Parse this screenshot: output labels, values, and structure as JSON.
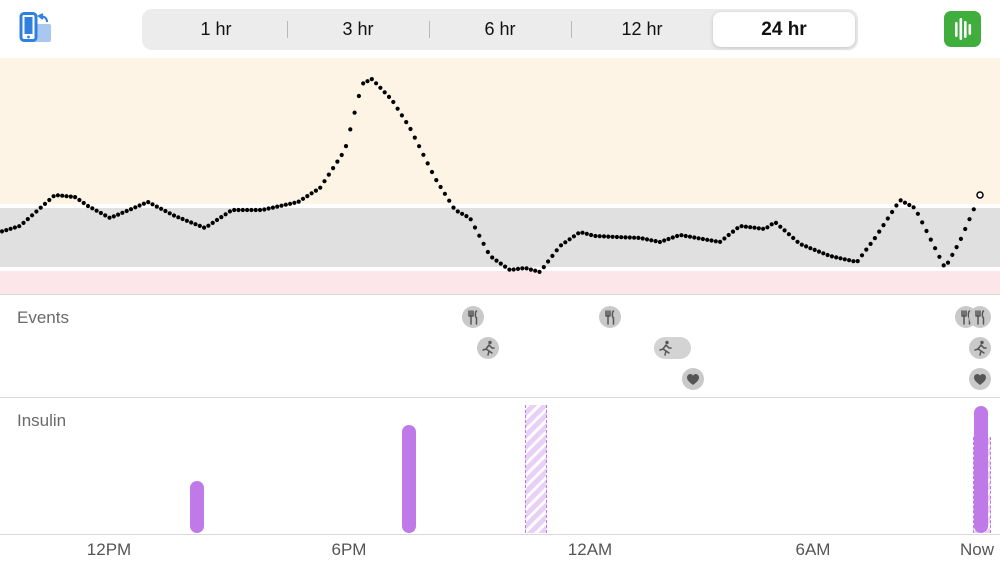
{
  "toolbar": {
    "rotate_icon": "device-rotate-icon",
    "chart_icon": "bar-chart-icon",
    "ranges": [
      {
        "label": "1 hr",
        "selected": false
      },
      {
        "label": "3 hr",
        "selected": false
      },
      {
        "label": "6 hr",
        "selected": false
      },
      {
        "label": "12 hr",
        "selected": false
      },
      {
        "label": "24 hr",
        "selected": true
      }
    ]
  },
  "colors": {
    "high_zone": "#fdf4e6",
    "target_zone": "#e0e0e0",
    "low_zone": "#fde6e9",
    "insulin": "#c07ae8",
    "chart_button": "#3fae3c",
    "rotate_icon": "#2f7fe0"
  },
  "sections": {
    "events_label": "Events",
    "insulin_label": "Insulin"
  },
  "events": [
    {
      "type": "meal",
      "icon": "fork-knife-icon",
      "row": 1,
      "hours_ago": 12.4
    },
    {
      "type": "exercise",
      "icon": "running-icon",
      "row": 2,
      "hours_ago": 12.2
    },
    {
      "type": "meal",
      "icon": "fork-knife-icon",
      "row": 1,
      "hours_ago": 9.1
    },
    {
      "type": "exercise",
      "icon": "running-icon",
      "row": 2,
      "hours_ago": 7.7,
      "duration_hours": 0.8
    },
    {
      "type": "health",
      "icon": "heart-icon",
      "row": 3,
      "hours_ago": 7.4
    },
    {
      "type": "meal",
      "icon": "fork-knife-icon",
      "row": 1,
      "hours_ago": 0.4
    },
    {
      "type": "meal",
      "icon": "fork-knife-icon",
      "row": 1,
      "hours_ago": 0.1
    },
    {
      "type": "exercise",
      "icon": "running-icon",
      "row": 2,
      "hours_ago": 0.1
    },
    {
      "type": "health",
      "icon": "heart-icon",
      "row": 3,
      "hours_ago": 0.1
    }
  ],
  "x_axis": [
    "12PM",
    "6PM",
    "12AM",
    "6AM",
    "Now"
  ]
}
